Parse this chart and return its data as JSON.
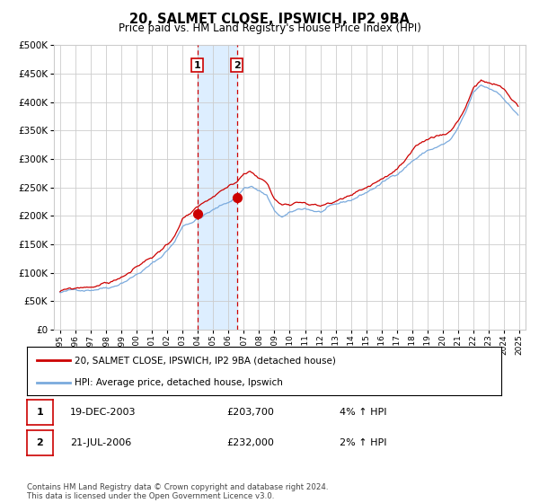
{
  "title": "20, SALMET CLOSE, IPSWICH, IP2 9BA",
  "subtitle": "Price paid vs. HM Land Registry's House Price Index (HPI)",
  "ylim": [
    0,
    500000
  ],
  "yticks": [
    0,
    50000,
    100000,
    150000,
    200000,
    250000,
    300000,
    350000,
    400000,
    450000,
    500000
  ],
  "ytick_labels": [
    "£0",
    "£50K",
    "£100K",
    "£150K",
    "£200K",
    "£250K",
    "£300K",
    "£350K",
    "£400K",
    "£450K",
    "£500K"
  ],
  "x_start_year": 1995,
  "x_end_year": 2025,
  "sale1_date": 2003.958,
  "sale1_price": 203700,
  "sale1_label": "1",
  "sale2_date": 2006.542,
  "sale2_price": 232000,
  "sale2_label": "2",
  "hpi_line_color": "#7aaadd",
  "price_line_color": "#cc0000",
  "sale_dot_color": "#cc0000",
  "shaded_region_color": "#ddeeff",
  "dashed_line_color": "#cc0000",
  "grid_color": "#cccccc",
  "background_color": "#ffffff",
  "legend1_label": "20, SALMET CLOSE, IPSWICH, IP2 9BA (detached house)",
  "legend2_label": "HPI: Average price, detached house, Ipswich",
  "sale1_date_str": "19-DEC-2003",
  "sale1_price_str": "£203,700",
  "sale1_hpi_str": "4% ↑ HPI",
  "sale2_date_str": "21-JUL-2006",
  "sale2_price_str": "£232,000",
  "sale2_hpi_str": "2% ↑ HPI",
  "footer": "Contains HM Land Registry data © Crown copyright and database right 2024.\nThis data is licensed under the Open Government Licence v3.0."
}
